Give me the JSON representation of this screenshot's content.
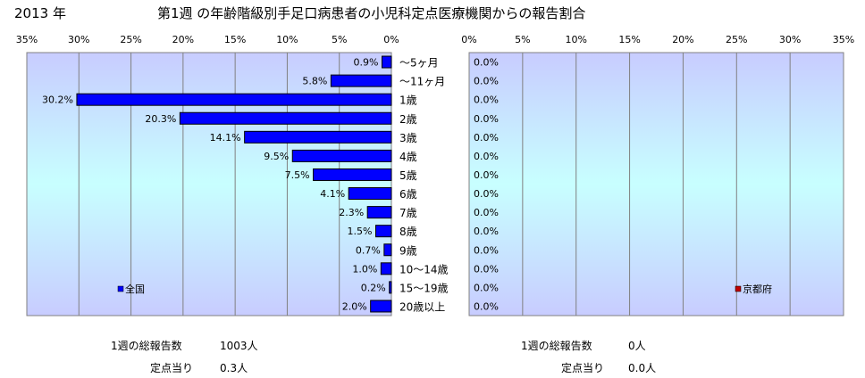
{
  "header": {
    "year": "2013 年",
    "title": "第1週 の年齢階級別手足口病患者の小児科定点医療機関からの報告割合"
  },
  "chart_data": [
    {
      "type": "bar",
      "orientation": "horizontal",
      "direction": "right-to-left",
      "xlim": [
        0,
        35
      ],
      "ticks": [
        "35%",
        "30%",
        "25%",
        "20%",
        "15%",
        "10%",
        "5%",
        "0%"
      ],
      "tick_values": [
        35,
        30,
        25,
        20,
        15,
        10,
        5,
        0
      ],
      "categories": [
        "～5ヶ月",
        "～11ヶ月",
        "1歳",
        "2歳",
        "3歳",
        "4歳",
        "5歳",
        "6歳",
        "7歳",
        "8歳",
        "9歳",
        "10～14歳",
        "15～19歳",
        "20歳以上"
      ],
      "series": [
        {
          "name": "全国",
          "color": "#0000ff",
          "values": [
            0.9,
            5.8,
            30.2,
            20.3,
            14.1,
            9.5,
            7.5,
            4.1,
            2.3,
            1.5,
            0.7,
            1.0,
            0.2,
            2.0
          ],
          "labels": [
            "0.9%",
            "5.8%",
            "30.2%",
            "20.3%",
            "14.1%",
            "9.5%",
            "7.5%",
            "4.1%",
            "2.3%",
            "1.5%",
            "0.7%",
            "1.0%",
            "0.2%",
            "2.0%"
          ]
        }
      ],
      "grid": true,
      "legend": "bottom-left"
    },
    {
      "type": "bar",
      "orientation": "horizontal",
      "direction": "left-to-right",
      "xlim": [
        0,
        35
      ],
      "ticks": [
        "0%",
        "5%",
        "10%",
        "15%",
        "20%",
        "25%",
        "30%",
        "35%"
      ],
      "tick_values": [
        0,
        5,
        10,
        15,
        20,
        25,
        30,
        35
      ],
      "series": [
        {
          "name": "京都府",
          "color": "#c00000",
          "values": [
            0,
            0,
            0,
            0,
            0,
            0,
            0,
            0,
            0,
            0,
            0,
            0,
            0,
            0
          ],
          "labels": [
            "0.0%",
            "0.0%",
            "0.0%",
            "0.0%",
            "0.0%",
            "0.0%",
            "0.0%",
            "0.0%",
            "0.0%",
            "0.0%",
            "0.0%",
            "0.0%",
            "0.0%",
            "0.0%"
          ]
        }
      ],
      "grid": true,
      "legend": "bottom-right"
    }
  ],
  "footer": {
    "national": {
      "total_label": "1週の総報告数",
      "total_value": "1003人",
      "per_label": "定点当り",
      "per_value": "0.3人"
    },
    "kyoto": {
      "total_label": "1週の総報告数",
      "total_value": "0人",
      "per_label": "定点当り",
      "per_value": "0.0人"
    }
  }
}
